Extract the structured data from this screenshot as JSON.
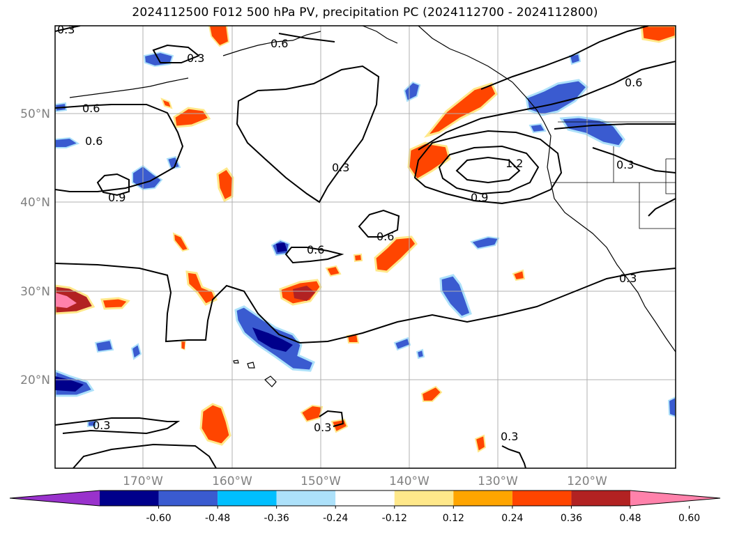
{
  "title": "2024112500 F012 500 hPa PV, precipitation PC (2024112700 - 2024112800)",
  "map": {
    "lon_range": [
      -180,
      -110
    ],
    "lat_range": [
      10,
      60
    ],
    "lat_labels": [
      "20°N",
      "30°N",
      "40°N",
      "50°N"
    ],
    "lon_labels": [
      "170°W",
      "160°W",
      "150°W",
      "140°W",
      "130°W",
      "120°W"
    ],
    "gridlines": true,
    "contour_color": "#000000",
    "coast_color": "#000000"
  },
  "pv_contour_labels": [
    "0.3",
    "0.6",
    "0.3",
    "0.6",
    "0.6",
    "0.3",
    "1.2",
    "0.9",
    "0.9",
    "0.6",
    "0.6",
    "0.6",
    "0.3",
    "0.3",
    "0.3",
    "0.3",
    "0.3"
  ],
  "colorbar": {
    "levels": [
      "-0.60",
      "-0.48",
      "-0.36",
      "-0.24",
      "-0.12",
      "0.12",
      "0.24",
      "0.36",
      "0.48",
      "0.60"
    ],
    "colors": [
      "#9932CC",
      "#00008B",
      "#3A5BD0",
      "#00BFFF",
      "#ADE1FA",
      "#FFFFFF",
      "#FFE88A",
      "#FFA500",
      "#FF4500",
      "#B22222",
      "#FF82AB"
    ]
  }
}
